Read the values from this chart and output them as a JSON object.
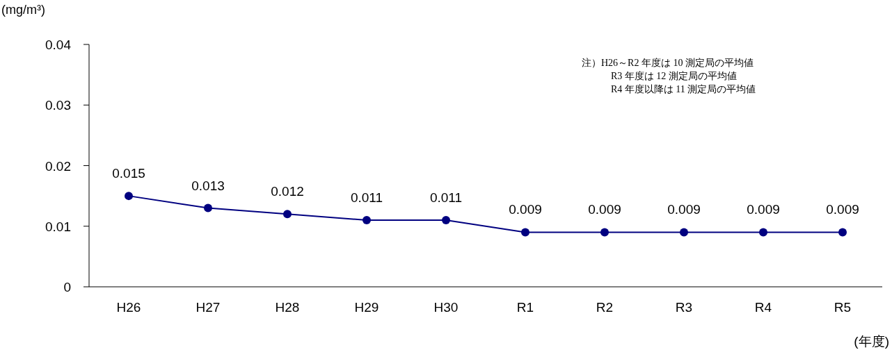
{
  "chart_data": {
    "type": "line",
    "ylabel": "(mg/m³)",
    "xlabel": "(年度)",
    "categories": [
      "H26",
      "H27",
      "H28",
      "H29",
      "H30",
      "R1",
      "R2",
      "R3",
      "R4",
      "R5"
    ],
    "series": [
      {
        "color": "#000080",
        "values": [
          0.015,
          0.013,
          0.012,
          0.011,
          0.011,
          0.009,
          0.009,
          0.009,
          0.009,
          0.009
        ]
      }
    ],
    "ylim": [
      0,
      0.04
    ],
    "yticks": [
      0,
      0.01,
      0.02,
      0.03,
      0.04
    ],
    "data_labels": true,
    "marker": "circle",
    "line_style": "solid",
    "annotations": [
      "注）H26～R2 年度は 10 測定局の平均値",
      "R3 年度は 12 測定局の平均値",
      "R4 年度以降は 11 測定局の平均値"
    ]
  }
}
